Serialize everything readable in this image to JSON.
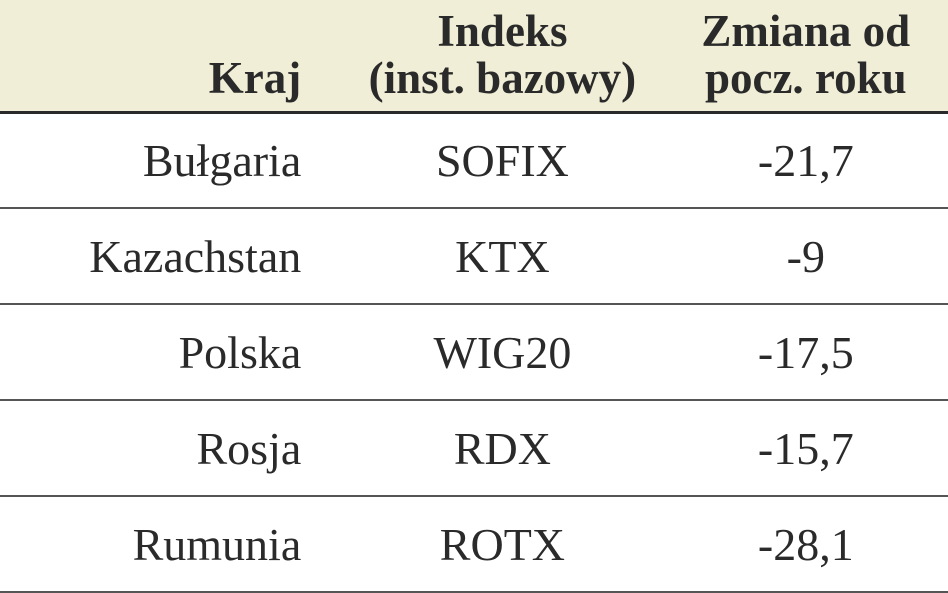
{
  "table": {
    "columns": [
      {
        "line1": "",
        "line2": "Kraj",
        "width_pct": 36,
        "header_align": "right"
      },
      {
        "line1": "Indeks",
        "line2": "(inst. bazowy)",
        "width_pct": 34,
        "header_align": "center"
      },
      {
        "line1": "Zmiana od",
        "line2": "pocz. roku",
        "width_pct": 30,
        "header_align": "center"
      }
    ],
    "rows": [
      {
        "country": "Bułgaria",
        "index": "SOFIX",
        "change": "-21,7"
      },
      {
        "country": "Kazachstan",
        "index": "KTX",
        "change": "-9"
      },
      {
        "country": "Polska",
        "index": "WIG20",
        "change": "-17,5"
      },
      {
        "country": "Rosja",
        "index": "RDX",
        "change": "-15,7"
      },
      {
        "country": "Rumunia",
        "index": "ROTX",
        "change": "-28,1"
      }
    ],
    "style": {
      "header_bg": "#f0eed6",
      "header_font_size": 45,
      "body_font_size": 46,
      "text_color": "#2a2a2a",
      "header_border_color": "#2a2a2a",
      "row_border_color": "#555555",
      "background_color": "#ffffff",
      "font_family": "Georgia, 'Times New Roman', serif"
    }
  }
}
